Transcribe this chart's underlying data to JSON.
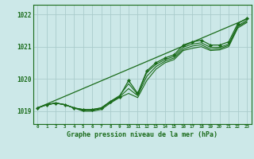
{
  "xlabel": "Graphe pression niveau de la mer (hPa)",
  "bg_color": "#cce8e8",
  "grid_color": "#aacccc",
  "line_color": "#1a6b1a",
  "marker_color": "#1a6b1a",
  "text_color": "#1a6b1a",
  "xlim": [
    -0.5,
    23.5
  ],
  "ylim": [
    1018.6,
    1022.3
  ],
  "yticks": [
    1019,
    1020,
    1021,
    1022
  ],
  "xticks": [
    0,
    1,
    2,
    3,
    4,
    5,
    6,
    7,
    8,
    9,
    10,
    11,
    12,
    13,
    14,
    15,
    16,
    17,
    18,
    19,
    20,
    21,
    22,
    23
  ],
  "trend_line": [
    1019.1,
    1019.22,
    1019.34,
    1019.46,
    1019.58,
    1019.7,
    1019.82,
    1019.94,
    1020.06,
    1020.18,
    1020.3,
    1020.42,
    1020.54,
    1020.66,
    1020.78,
    1020.9,
    1021.02,
    1021.14,
    1021.26,
    1021.38,
    1021.5,
    1021.62,
    1021.74,
    1021.86
  ],
  "series_marker": [
    1019.1,
    1019.2,
    1019.25,
    1019.2,
    1019.1,
    1019.05,
    1019.05,
    1019.1,
    1019.3,
    1019.45,
    1019.95,
    1019.55,
    1020.25,
    1020.5,
    1020.65,
    1020.75,
    1021.05,
    1021.15,
    1021.2,
    1021.05,
    1021.05,
    1021.15,
    1021.72,
    1021.88
  ],
  "series1": [
    1019.1,
    1019.2,
    1019.25,
    1019.2,
    1019.1,
    1019.05,
    1019.05,
    1019.1,
    1019.3,
    1019.48,
    1019.85,
    1019.52,
    1020.2,
    1020.45,
    1020.6,
    1020.7,
    1020.98,
    1021.08,
    1021.12,
    1020.98,
    1020.98,
    1021.08,
    1021.65,
    1021.82
  ],
  "series2": [
    1019.1,
    1019.2,
    1019.25,
    1019.2,
    1019.1,
    1019.0,
    1019.0,
    1019.05,
    1019.25,
    1019.42,
    1019.55,
    1019.42,
    1019.95,
    1020.3,
    1020.5,
    1020.6,
    1020.88,
    1020.95,
    1021.0,
    1020.88,
    1020.9,
    1021.0,
    1021.58,
    1021.75
  ],
  "series3": [
    1019.1,
    1019.2,
    1019.25,
    1019.2,
    1019.1,
    1019.02,
    1019.02,
    1019.08,
    1019.28,
    1019.44,
    1019.7,
    1019.48,
    1020.08,
    1020.38,
    1020.55,
    1020.65,
    1020.92,
    1021.02,
    1021.06,
    1020.92,
    1020.94,
    1021.04,
    1021.62,
    1021.78
  ]
}
